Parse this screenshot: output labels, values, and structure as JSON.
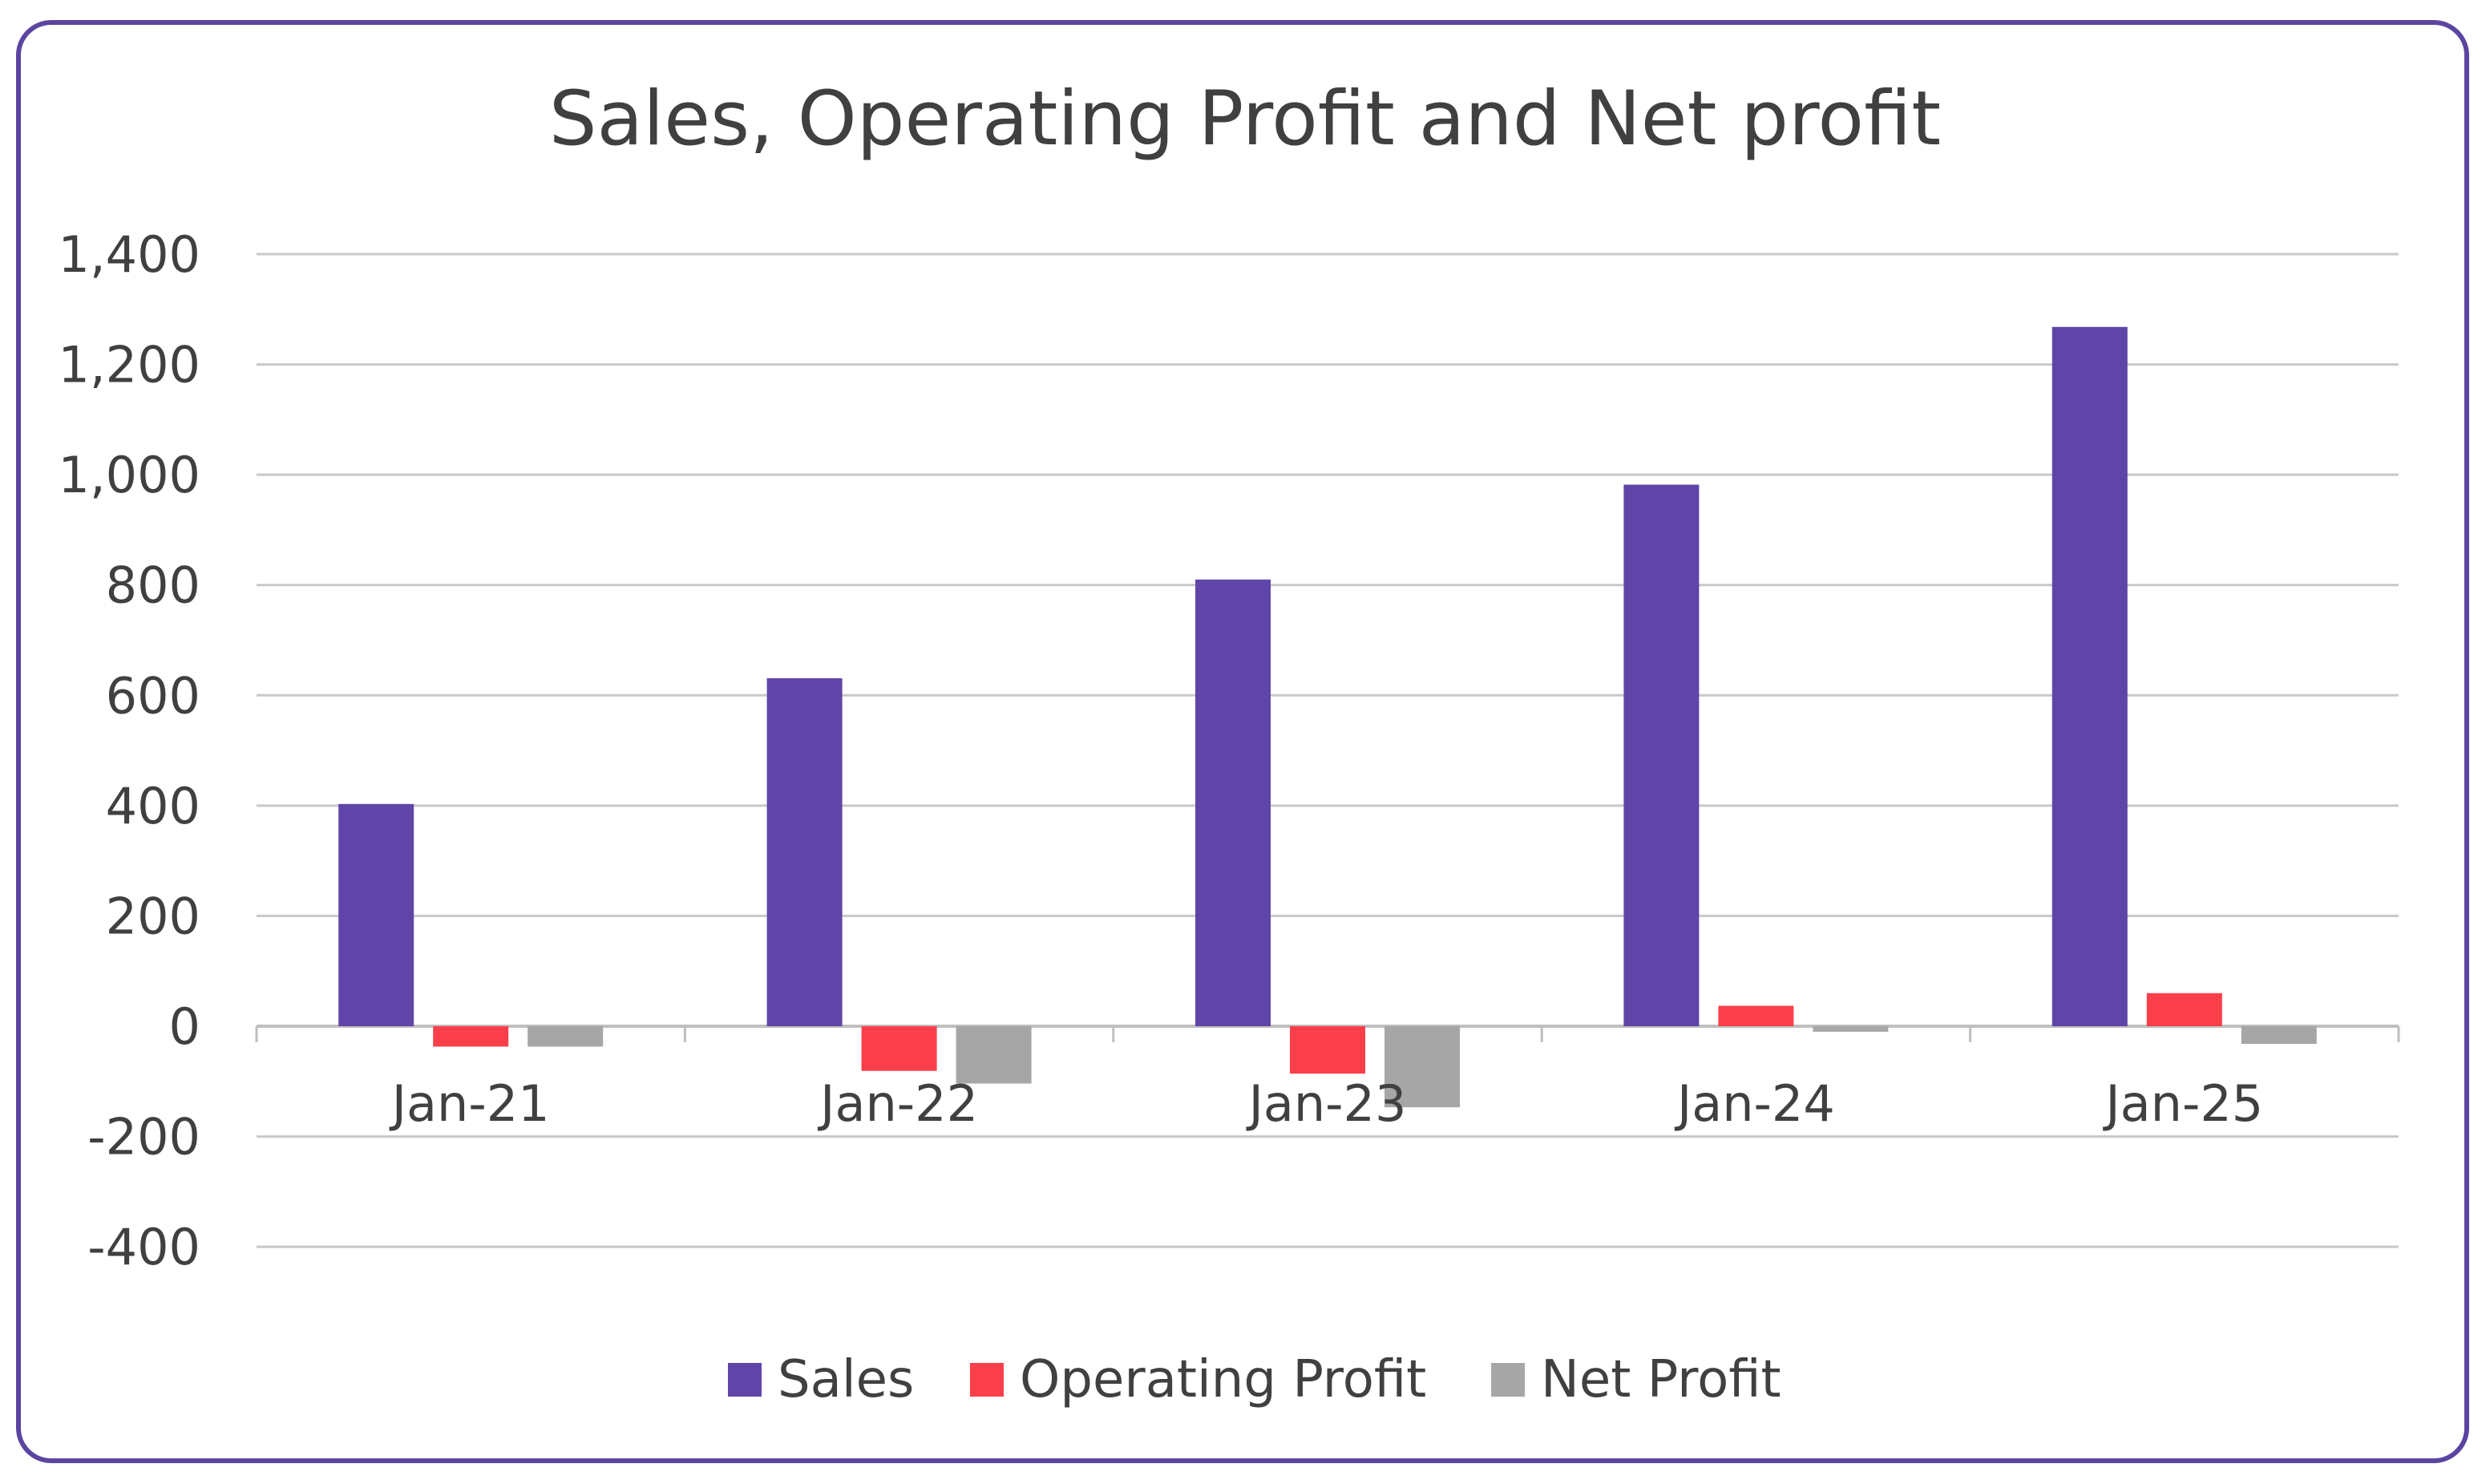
{
  "chart_data": {
    "type": "bar",
    "title": "Sales, Operating Profit and Net profit",
    "xlabel": "",
    "ylabel": "",
    "categories": [
      "Jan-21",
      "Jan-22",
      "Jan-23",
      "Jan-24",
      "Jan-25"
    ],
    "series": [
      {
        "name": "Sales",
        "color": "#6045a8",
        "values": [
          403,
          631,
          810,
          982,
          1268
        ]
      },
      {
        "name": "Operating Profit",
        "color": "#fa3f4a",
        "values": [
          -37,
          -81,
          -86,
          37,
          60
        ]
      },
      {
        "name": "Net Profit",
        "color": "#a6a6a6",
        "values": [
          -37,
          -104,
          -147,
          -10,
          -32
        ]
      }
    ],
    "ylim": [
      -400,
      1400
    ],
    "yticks": [
      1400,
      1200,
      1000,
      800,
      600,
      400,
      200,
      0,
      -200,
      -400
    ],
    "ytick_labels": [
      "1,400",
      "1,200",
      "1,000",
      "800",
      "600",
      "400",
      "200",
      "0",
      "-200",
      "-400"
    ],
    "grid": true,
    "legend_position": "bottom",
    "frame_color": "#5b45a0"
  }
}
